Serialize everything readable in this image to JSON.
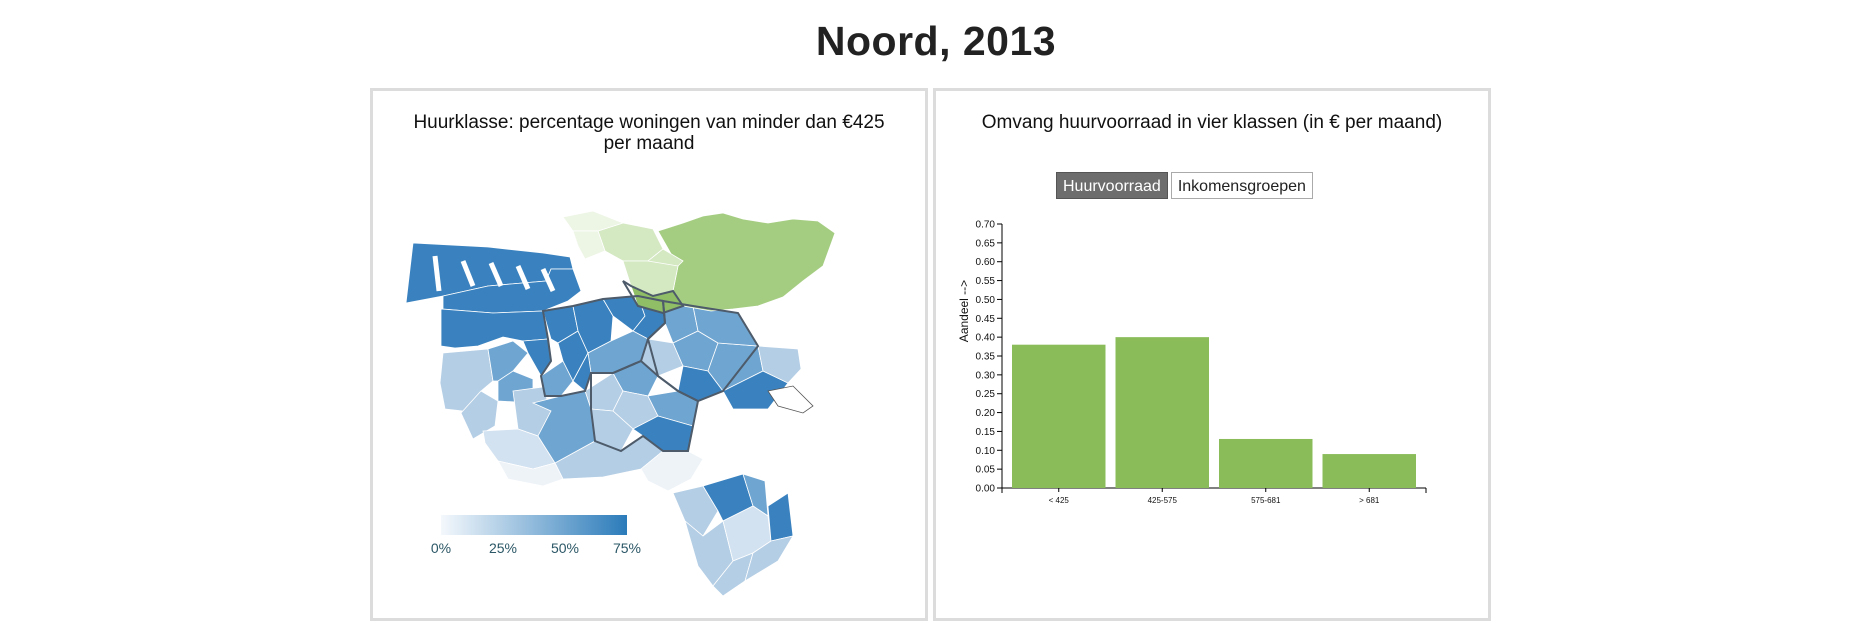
{
  "page": {
    "title": "Noord, 2013"
  },
  "map_panel": {
    "title": "Huurklasse: percentage woningen van minder dan €425 per maand",
    "legend": {
      "ticks": [
        "0%",
        "25%",
        "50%",
        "75%"
      ],
      "color_low": "#f4f8fc",
      "color_high": "#2b7bba"
    },
    "colors": {
      "dark": "#3a82bf",
      "mid": "#6fa5d1",
      "light": "#b4cee5",
      "pale": "#d3e2f0",
      "green_main": "#a5cd82",
      "green_dark": "#8fbe66",
      "green_light": "#d4e8c2",
      "green_pale": "#edf5e5",
      "outline": "#4d5b6a"
    }
  },
  "chart_panel": {
    "title": "Omvang huurvoorraad in vier klassen (in € per maand)",
    "toggles": [
      {
        "label": "Huurvoorraad",
        "active": true
      },
      {
        "label": "Inkomensgroepen",
        "active": false
      }
    ]
  },
  "chart_data": {
    "type": "bar",
    "categories": [
      "< 425",
      "425-575",
      "575-681",
      "> 681"
    ],
    "values": [
      0.38,
      0.4,
      0.13,
      0.09
    ],
    "ylabel": "Aandeel -->",
    "xlabel": "",
    "ylim": [
      0,
      0.7
    ],
    "yticks": [
      "0.00",
      "0.05",
      "0.10",
      "0.15",
      "0.20",
      "0.25",
      "0.30",
      "0.35",
      "0.40",
      "0.45",
      "0.50",
      "0.55",
      "0.60",
      "0.65",
      "0.70"
    ],
    "bar_color": "#8abd5a",
    "grid": false
  }
}
